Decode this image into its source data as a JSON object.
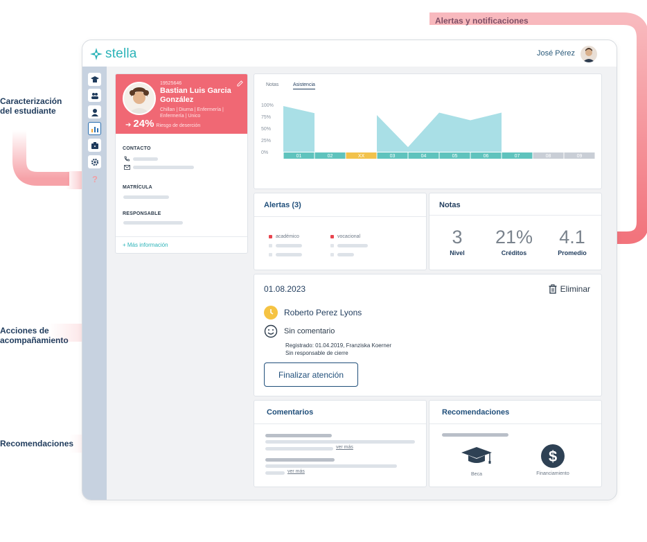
{
  "annotations": {
    "top": "Alertas y notificaciones",
    "caracterizacion": "Caracterización del estudiante",
    "acciones": "Acciones de acompañamiento",
    "recomendaciones": "Recomendaciones"
  },
  "app": {
    "logo_text": "stella",
    "user_name": "José Pérez"
  },
  "student": {
    "id": "19525646",
    "name": "Bastian Luis Garcia González",
    "program": "Chillan | Diurna | Enfermería | Enfermería | Unico",
    "risk_pct": "24%",
    "risk_label": "Riesgo de deserción",
    "contact_label": "CONTACTO",
    "enrollment_label": "MATRÍCULA",
    "responsible_label": "RESPONSABLE",
    "more_info": "+   Más información"
  },
  "chart_tabs": {
    "notas": "Notas",
    "asistencia": "Asistencia"
  },
  "chart_data": {
    "type": "area",
    "categories": [
      "01",
      "02",
      "XX",
      "03",
      "04",
      "05",
      "06",
      "07",
      "08",
      "09"
    ],
    "values": [
      97,
      82,
      null,
      78,
      10,
      83,
      67,
      83,
      null,
      null
    ],
    "y_ticks": [
      "100%",
      "75%",
      "50%",
      "25%",
      "0%"
    ],
    "ylim": [
      0,
      100
    ],
    "category_colors": [
      "#5fc3bd",
      "#5fc3bd",
      "#f2c24b",
      "#5fc3bd",
      "#5fc3bd",
      "#5fc3bd",
      "#5fc3bd",
      "#5fc3bd",
      "#c9ced6",
      "#c9ced6"
    ],
    "fill_color": "#a9dfe6"
  },
  "alerts": {
    "title": "Alertas (3)",
    "academic": "académico",
    "vocational": "vocacional"
  },
  "notas": {
    "title": "Notas",
    "stats": [
      {
        "value": "3",
        "label": "Nivel"
      },
      {
        "value": "21%",
        "label": "Créditos"
      },
      {
        "value": "4.1",
        "label": "Promedio"
      }
    ]
  },
  "action": {
    "date": "01.08.2023",
    "delete_label": "Eliminar",
    "person": "Roberto Perez Lyons",
    "comment": "Sin comentario",
    "registered": "Registrado: 01.04.2019, Franziska Koerner",
    "closing": "Sin responsable de cierre",
    "finish_button": "Finalizar atención"
  },
  "comments": {
    "title": "Comentarios",
    "see_more": "ver más"
  },
  "recommendations": {
    "title": "Recomendaciones",
    "items": [
      {
        "icon": "graduation-cap-icon",
        "label": "Beca"
      },
      {
        "icon": "dollar-icon",
        "label": "Financiamiento"
      }
    ]
  }
}
